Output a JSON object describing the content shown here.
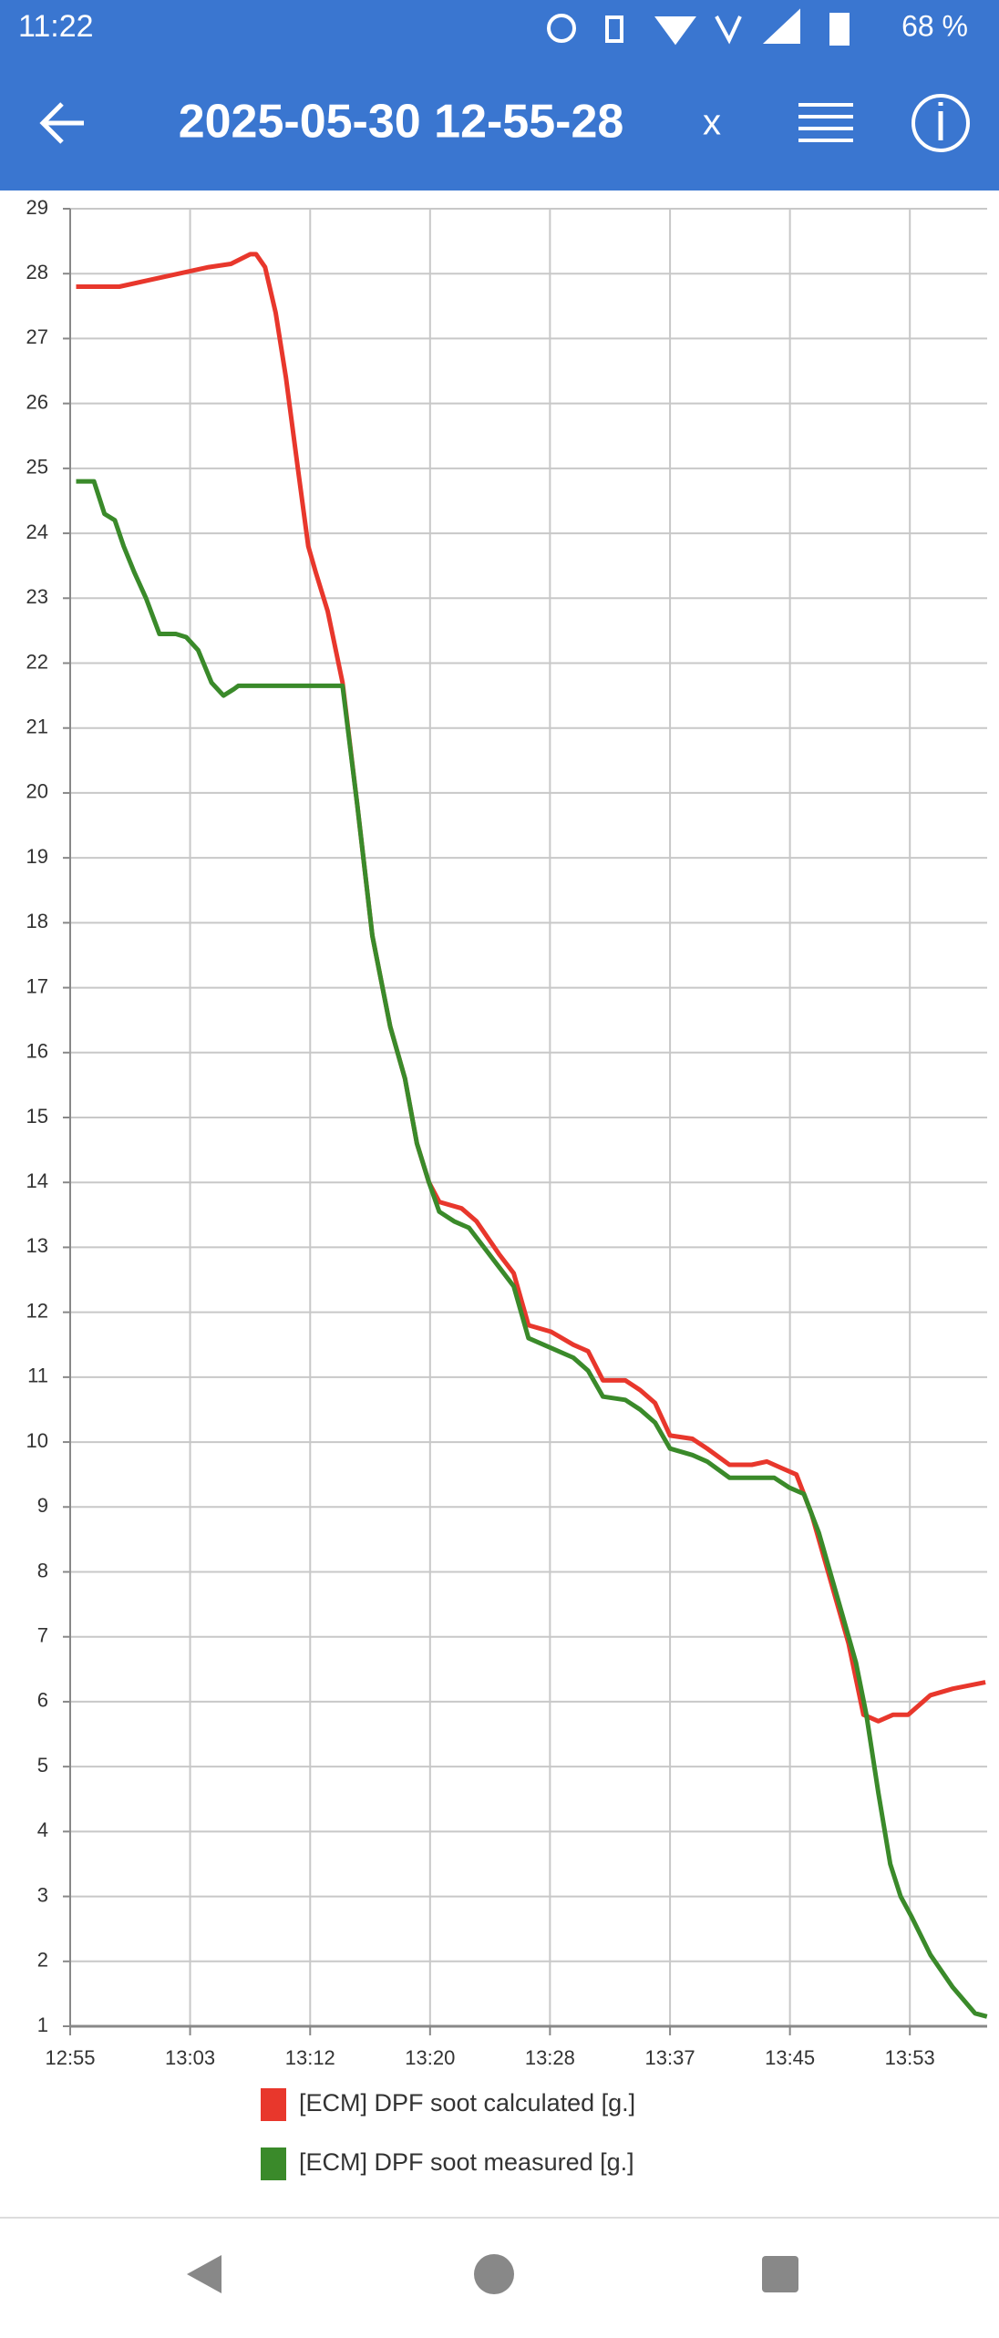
{
  "status_bar": {
    "time": "11:22",
    "battery": "68 %"
  },
  "app_bar": {
    "title": "2025-05-30 12-55-28",
    "close": "x"
  },
  "chart_data": {
    "type": "line",
    "xlim": [
      775,
      838.7
    ],
    "xticks": [
      {
        "value": 775,
        "label": "12:55"
      },
      {
        "value": 783.33,
        "label": "13:03"
      },
      {
        "value": 791.67,
        "label": "13:12"
      },
      {
        "value": 800,
        "label": "13:20"
      },
      {
        "value": 808.33,
        "label": "13:28"
      },
      {
        "value": 816.67,
        "label": "13:37"
      },
      {
        "value": 825,
        "label": "13:45"
      },
      {
        "value": 833.33,
        "label": "13:53"
      }
    ],
    "ylim": [
      1,
      29
    ],
    "yticks": [
      1,
      2,
      3,
      4,
      5,
      6,
      7,
      8,
      9,
      10,
      11,
      12,
      13,
      14,
      15,
      16,
      17,
      18,
      19,
      20,
      21,
      22,
      23,
      24,
      25,
      26,
      27,
      28,
      29
    ],
    "grid": true,
    "series": [
      {
        "name": "[ECM] DPF soot calculated [g.]",
        "color": "#e8372c",
        "x": [
          775.41,
          778.41,
          780.48,
          782.55,
          784.62,
          786.17,
          787.51,
          787.92,
          788.54,
          789.27,
          789.99,
          790.82,
          791.54,
          792.06,
          792.89,
          793.92,
          794.95,
          795.99,
          797.23,
          798.26,
          799.09,
          799.92,
          800.64,
          802.19,
          803.23,
          804.78,
          805.81,
          806.84,
          808.4,
          809.95,
          810.98,
          812.01,
          813.56,
          814.6,
          815.63,
          816.67,
          818.22,
          819.25,
          820.8,
          822.35,
          823.39,
          824.42,
          825.45,
          826.49,
          828.04,
          829.07,
          830.11,
          831.14,
          832.17,
          833.21,
          834.76,
          836.31,
          838.58
        ],
        "values": [
          27.8,
          27.8,
          27.9,
          28.0,
          28.1,
          28.15,
          28.3,
          28.3,
          28.1,
          27.4,
          26.4,
          25.0,
          23.8,
          23.4,
          22.8,
          21.7,
          19.8,
          17.8,
          16.4,
          15.6,
          14.6,
          14.0,
          13.7,
          13.6,
          13.4,
          12.9,
          12.6,
          11.8,
          11.7,
          11.5,
          11.4,
          10.95,
          10.95,
          10.8,
          10.6,
          10.1,
          10.05,
          9.9,
          9.65,
          9.65,
          9.7,
          9.6,
          9.5,
          8.9,
          7.7,
          6.9,
          5.8,
          5.7,
          5.8,
          5.8,
          6.1,
          6.2,
          6.3
        ]
      },
      {
        "name": "[ECM] DPF soot measured [g.]",
        "color": "#3a8a2a",
        "x": [
          775.41,
          776.65,
          777.38,
          778.1,
          778.72,
          779.45,
          780.27,
          781.2,
          782.34,
          783.06,
          783.89,
          784.82,
          785.65,
          786.37,
          786.68,
          793.92,
          794.95,
          795.99,
          797.23,
          798.26,
          799.09,
          799.92,
          800.64,
          801.67,
          802.71,
          803.74,
          804.78,
          805.81,
          806.84,
          808.4,
          809.95,
          810.98,
          812.01,
          813.56,
          814.6,
          815.63,
          816.67,
          818.22,
          819.25,
          820.8,
          822.35,
          823.9,
          824.94,
          825.97,
          827.01,
          828.56,
          829.59,
          830.31,
          831.14,
          831.97,
          832.69,
          833.42,
          834.76,
          836.31,
          837.86,
          838.69
        ],
        "values": [
          24.8,
          24.8,
          24.3,
          24.2,
          23.8,
          23.4,
          23.0,
          22.45,
          22.45,
          22.4,
          22.2,
          21.7,
          21.5,
          21.6,
          21.65,
          21.65,
          19.8,
          17.8,
          16.4,
          15.6,
          14.6,
          14.0,
          13.55,
          13.4,
          13.3,
          13.0,
          12.7,
          12.4,
          11.6,
          11.45,
          11.3,
          11.1,
          10.7,
          10.65,
          10.5,
          10.3,
          9.9,
          9.8,
          9.7,
          9.45,
          9.45,
          9.45,
          9.3,
          9.2,
          8.6,
          7.4,
          6.6,
          5.8,
          4.6,
          3.5,
          3.0,
          2.7,
          2.1,
          1.6,
          1.2,
          1.15
        ]
      }
    ]
  }
}
